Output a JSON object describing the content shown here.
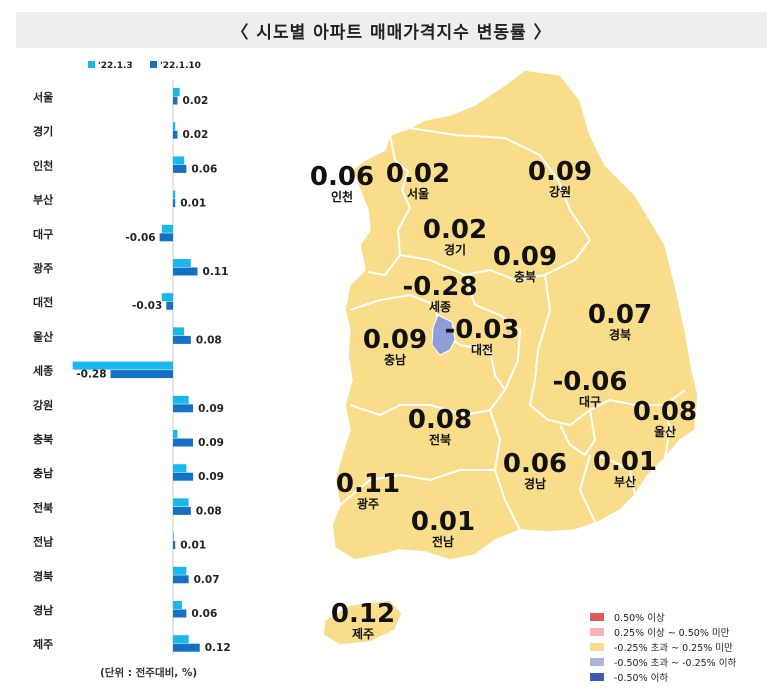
{
  "title": "〈 시도별 아파트 매매가격지수 변동률 〉",
  "unit_note": "(단위 : 전주대비, %)",
  "colors": {
    "series_1": "#1ab7ea",
    "series_2": "#1571c4",
    "map_base": "#f9dd8b",
    "map_border": "#ffffff",
    "map_low": "#8f9ed6"
  },
  "chart_data": {
    "type": "bar",
    "orientation": "horizontal",
    "categories": [
      "서울",
      "경기",
      "인천",
      "부산",
      "대구",
      "광주",
      "대전",
      "울산",
      "세종",
      "강원",
      "충북",
      "충남",
      "전북",
      "전남",
      "경북",
      "경남",
      "제주"
    ],
    "series": [
      {
        "name": "'22.1.3",
        "values": [
          0.03,
          0.01,
          0.05,
          0.01,
          -0.05,
          0.08,
          -0.05,
          0.05,
          -0.45,
          0.07,
          0.02,
          0.06,
          0.07,
          0.0,
          0.06,
          0.04,
          0.07
        ]
      },
      {
        "name": "'22.1.10",
        "values": [
          0.02,
          0.02,
          0.06,
          0.01,
          -0.06,
          0.11,
          -0.03,
          0.08,
          -0.28,
          0.09,
          0.09,
          0.09,
          0.08,
          0.01,
          0.07,
          0.06,
          0.12
        ]
      }
    ],
    "data_labels": [
      "0.02",
      "0.02",
      "0.06",
      "0.01",
      "-0.06",
      "0.11",
      "-0.03",
      "0.08",
      "-0.28",
      "0.09",
      "0.09",
      "0.09",
      "0.08",
      "0.01",
      "0.07",
      "0.06",
      "0.12"
    ],
    "legend_position": "top-left",
    "grid": false
  },
  "map": {
    "regions": [
      {
        "name": "인천",
        "value": "0.06"
      },
      {
        "name": "서울",
        "value": "0.02"
      },
      {
        "name": "강원",
        "value": "0.09"
      },
      {
        "name": "경기",
        "value": "0.02"
      },
      {
        "name": "충북",
        "value": "0.09"
      },
      {
        "name": "세종",
        "value": "-0.28"
      },
      {
        "name": "대전",
        "value": "-0.03"
      },
      {
        "name": "충남",
        "value": "0.09"
      },
      {
        "name": "경북",
        "value": "0.07"
      },
      {
        "name": "대구",
        "value": "-0.06"
      },
      {
        "name": "울산",
        "value": "0.08"
      },
      {
        "name": "전북",
        "value": "0.08"
      },
      {
        "name": "경남",
        "value": "0.06"
      },
      {
        "name": "부산",
        "value": "0.01"
      },
      {
        "name": "광주",
        "value": "0.11"
      },
      {
        "name": "전남",
        "value": "0.01"
      },
      {
        "name": "제주",
        "value": "0.12"
      }
    ],
    "legend": [
      {
        "label": "0.50% 이상",
        "color": "#e05a5a"
      },
      {
        "label": "0.25% 이상 ~ 0.50% 미만",
        "color": "#f3b5b5"
      },
      {
        "label": "-0.25% 초과 ~ 0.25% 미만",
        "color": "#f9dd8b"
      },
      {
        "label": "-0.50% 초과 ~ -0.25% 이하",
        "color": "#a9b6e0"
      },
      {
        "label": "-0.50% 이하",
        "color": "#3f5bb0"
      }
    ]
  }
}
